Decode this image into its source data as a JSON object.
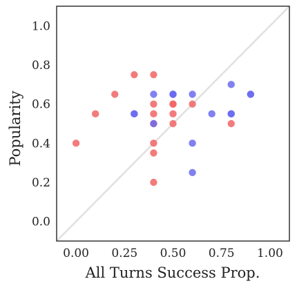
{
  "chart_data": {
    "type": "scatter",
    "title": "",
    "xlabel": "All Turns Success Prop.",
    "ylabel": "Popularity",
    "xlim": [
      -0.1,
      1.1
    ],
    "ylim": [
      -0.1,
      1.1
    ],
    "xticks": [
      0.0,
      0.25,
      0.5,
      0.75,
      1.0
    ],
    "xtick_labels": [
      "0.00",
      "0.25",
      "0.50",
      "0.75",
      "1.00"
    ],
    "yticks": [
      0.0,
      0.2,
      0.4,
      0.6,
      0.8,
      1.0
    ],
    "ytick_labels": [
      "0.0",
      "0.2",
      "0.4",
      "0.6",
      "0.8",
      "1.0"
    ],
    "grid": false,
    "legend": "none",
    "reference_line": {
      "from": [
        -0.1,
        -0.1
      ],
      "to": [
        1.1,
        1.1
      ],
      "color": "#e0e0e0"
    },
    "colors": {
      "red_group": "#f06565",
      "blue_group": "#6b6bf0",
      "frame": "#333333"
    },
    "series": [
      {
        "color": "#f06565",
        "points": [
          [
            0.0,
            0.4
          ],
          [
            0.1,
            0.55
          ],
          [
            0.2,
            0.65
          ],
          [
            0.3,
            0.75
          ],
          [
            0.4,
            0.75
          ],
          [
            0.4,
            0.6
          ],
          [
            0.4,
            0.55
          ],
          [
            0.4,
            0.5
          ],
          [
            0.4,
            0.4
          ],
          [
            0.4,
            0.35
          ],
          [
            0.4,
            0.2
          ],
          [
            0.5,
            0.6
          ],
          [
            0.5,
            0.6
          ],
          [
            0.5,
            0.55
          ],
          [
            0.5,
            0.5
          ],
          [
            0.6,
            0.6
          ],
          [
            0.8,
            0.5
          ]
        ]
      },
      {
        "color": "#6b6bf0",
        "points": [
          [
            0.3,
            0.55
          ],
          [
            0.3,
            0.55
          ],
          [
            0.4,
            0.65
          ],
          [
            0.4,
            0.5
          ],
          [
            0.5,
            0.65
          ],
          [
            0.5,
            0.65
          ],
          [
            0.5,
            0.65
          ],
          [
            0.6,
            0.65
          ],
          [
            0.6,
            0.4
          ],
          [
            0.6,
            0.25
          ],
          [
            0.7,
            0.55
          ],
          [
            0.8,
            0.7
          ],
          [
            0.8,
            0.55
          ],
          [
            0.8,
            0.55
          ],
          [
            0.9,
            0.65
          ],
          [
            0.9,
            0.65
          ]
        ]
      }
    ]
  }
}
